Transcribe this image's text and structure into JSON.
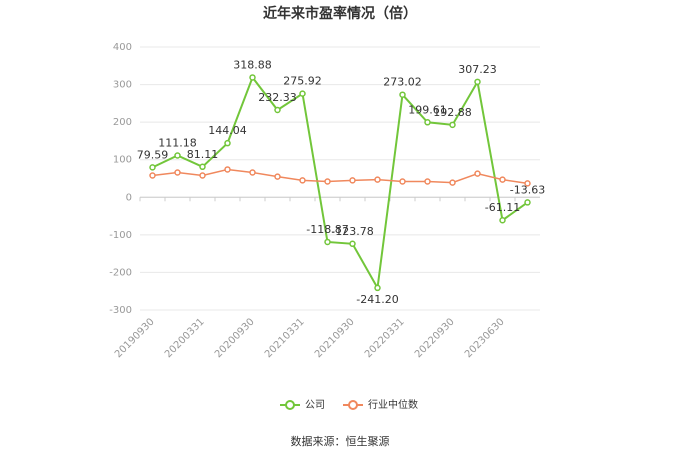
{
  "chart_data": {
    "type": "line",
    "title": "近年来市盈率情况（倍）",
    "categories": [
      "20190930",
      null,
      "20200331",
      null,
      "20200930",
      null,
      "20210331",
      null,
      "20210930",
      null,
      "20220331",
      null,
      "20220930",
      null,
      "20230630",
      null
    ],
    "series": [
      {
        "name": "公司",
        "color": "#72c63a",
        "values": [
          79.59,
          111.18,
          81.11,
          144.04,
          318.88,
          232.33,
          275.92,
          -118.87,
          -123.78,
          -241.2,
          273.02,
          199.61,
          192.88,
          307.23,
          -61.11,
          -13.63
        ],
        "value_labels": [
          "79.59",
          "111.18",
          "81.11",
          "144.04",
          "318.88",
          "232.33",
          "275.92",
          "-118.87",
          "-123.78",
          "-241.20",
          "273.02",
          "199.61",
          "192.88",
          "307.23",
          "-61.11",
          "-13.63"
        ]
      },
      {
        "name": "行业中位数",
        "color": "#f0885d",
        "values": [
          58,
          66,
          58,
          74,
          66,
          55,
          45,
          42,
          45,
          47,
          42,
          42,
          39,
          63,
          47,
          37
        ]
      }
    ],
    "ylim": [
      -300,
      400
    ],
    "yticks": [
      400,
      300,
      200,
      100,
      0,
      -100,
      -200,
      -300
    ],
    "grid": true,
    "source": "数据来源：恒生聚源"
  }
}
